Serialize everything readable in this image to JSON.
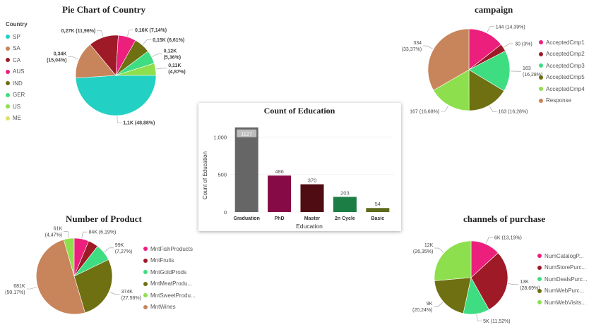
{
  "charts": [
    {
      "type": "pie",
      "title": "Pie Chart of Country",
      "legend_title": "Country",
      "legend_position": "left",
      "categories": [
        "SP",
        "SA",
        "CA",
        "AUS",
        "IND",
        "GER",
        "US",
        "ME"
      ],
      "values": [
        48.88,
        15.04,
        11.96,
        7.14,
        6.61,
        5.36,
        4.87,
        0.14
      ],
      "colors": [
        "#22d1c3",
        "#c8845a",
        "#9e1a27",
        "#ec1f7d",
        "#6e7011",
        "#3fdd82",
        "#8edf4d",
        "#d9e36a"
      ],
      "slice_order": [
        "SP",
        "SA",
        "CA",
        "AUS",
        "IND",
        "GER",
        "US"
      ],
      "data_labels": [
        {
          "category": "SP",
          "lines": [
            "1,1K (48,88%)"
          ]
        },
        {
          "category": "SA",
          "lines": [
            "0,34K",
            "(15,04%)"
          ]
        },
        {
          "category": "CA",
          "lines": [
            "0,27K (11,96%)"
          ]
        },
        {
          "category": "AUS",
          "lines": [
            "0,16K (7,14%)"
          ]
        },
        {
          "category": "IND",
          "lines": [
            "0,15K (6,61%)"
          ]
        },
        {
          "category": "GER",
          "lines": [
            "0,12K",
            "(5,36%)"
          ]
        },
        {
          "category": "US",
          "lines": [
            "0,11K",
            "(4,87%)"
          ]
        }
      ]
    },
    {
      "type": "pie",
      "title": "campaign",
      "legend_position": "right",
      "categories": [
        "AcceptedCmp1",
        "AcceptedCmp2",
        "AcceptedCmp3",
        "AcceptedCmp5",
        "AcceptedCmp4",
        "Response"
      ],
      "values": [
        144,
        30,
        163,
        163,
        167,
        334
      ],
      "colors": [
        "#ec1f7d",
        "#9e1a27",
        "#3fdd82",
        "#6e7011",
        "#8edf4d",
        "#c8845a"
      ],
      "slice_order": [
        "AcceptedCmp1",
        "AcceptedCmp2",
        "AcceptedCmp3",
        "AcceptedCmp5",
        "AcceptedCmp4",
        "Response"
      ],
      "data_labels": [
        {
          "category": "AcceptedCmp1",
          "lines": [
            "144 (14,39%)"
          ]
        },
        {
          "category": "AcceptedCmp2",
          "lines": [
            "30 (3%)"
          ]
        },
        {
          "category": "AcceptedCmp3",
          "lines": [
            "163",
            "(16,28%)"
          ]
        },
        {
          "category": "AcceptedCmp5",
          "lines": [
            "163 (16,28%)"
          ]
        },
        {
          "category": "AcceptedCmp4",
          "lines": [
            "167 (16,68%)"
          ]
        },
        {
          "category": "Response",
          "lines": [
            "334",
            "(33,37%)"
          ]
        }
      ]
    },
    {
      "type": "bar",
      "title": "Count of Education",
      "xlabel": "Education",
      "ylabel": "Count of Education",
      "categories": [
        "Graduation",
        "PhD",
        "Master",
        "2n Cycle",
        "Basic"
      ],
      "values": [
        1127,
        486,
        370,
        203,
        54
      ],
      "value_labels": [
        "1127",
        "486",
        "370",
        "203",
        "54"
      ],
      "colors": [
        "#666666",
        "#860a45",
        "#4f0c12",
        "#1d7e45",
        "#5e6b1d"
      ],
      "yticks": [
        0,
        500,
        1000
      ],
      "ytick_labels": [
        "0",
        "500",
        "1,000"
      ],
      "ylim": [
        0,
        1200
      ]
    },
    {
      "type": "pie",
      "title": "Number of Product",
      "legend_position": "right",
      "categories": [
        "MntFishProducts",
        "MntFruits",
        "MntGoldProds",
        "MntMeatProdu...",
        "MntSweetProdu...",
        "MntWines"
      ],
      "values": [
        6.19,
        4.34,
        7.27,
        27.56,
        4.47,
        50.17
      ],
      "colors": [
        "#ec1f7d",
        "#9e1a27",
        "#3fdd82",
        "#6e7011",
        "#8edf4d",
        "#c8845a"
      ],
      "slice_order": [
        "MntSweetProdu...",
        "MntFishProducts",
        "MntFruits",
        "MntGoldProds",
        "MntMeatProdu...",
        "MntWines"
      ],
      "data_labels": [
        {
          "category": "MntFishProducts",
          "lines": [
            "84K (6,19%)"
          ]
        },
        {
          "category": "MntGoldProds",
          "lines": [
            "99K",
            "(7,27%)"
          ]
        },
        {
          "category": "MntMeatProdu...",
          "lines": [
            "374K",
            "(27,56%)"
          ]
        },
        {
          "category": "MntSweetProdu...",
          "lines": [
            "61K",
            "(4,47%)"
          ]
        },
        {
          "category": "MntWines",
          "lines": [
            "681K",
            "(50,17%)"
          ]
        }
      ]
    },
    {
      "type": "pie",
      "title": "channels of purchase",
      "legend_position": "right",
      "categories": [
        "NumCatalogP...",
        "NumStorePurc...",
        "NumDealsPurc...",
        "NumWebPurc...",
        "NumWebVisits..."
      ],
      "values": [
        13.19,
        28.69,
        11.52,
        20.24,
        26.35
      ],
      "colors": [
        "#ec1f7d",
        "#9e1a27",
        "#3fdd82",
        "#6e7011",
        "#8edf4d"
      ],
      "slice_order": [
        "NumCatalogP...",
        "NumStorePurc...",
        "NumDealsPurc...",
        "NumWebPurc...",
        "NumWebVisits..."
      ],
      "data_labels": [
        {
          "category": "NumCatalogP...",
          "lines": [
            "6K (13,19%)"
          ]
        },
        {
          "category": "NumStorePurc...",
          "lines": [
            "13K",
            "(28,69%)"
          ]
        },
        {
          "category": "NumDealsPurc...",
          "lines": [
            "5K (11,52%)"
          ]
        },
        {
          "category": "NumWebPurc...",
          "lines": [
            "9K",
            "(20,24%)"
          ]
        },
        {
          "category": "NumWebVisits...",
          "lines": [
            "12K",
            "(26,35%)"
          ]
        }
      ]
    }
  ]
}
